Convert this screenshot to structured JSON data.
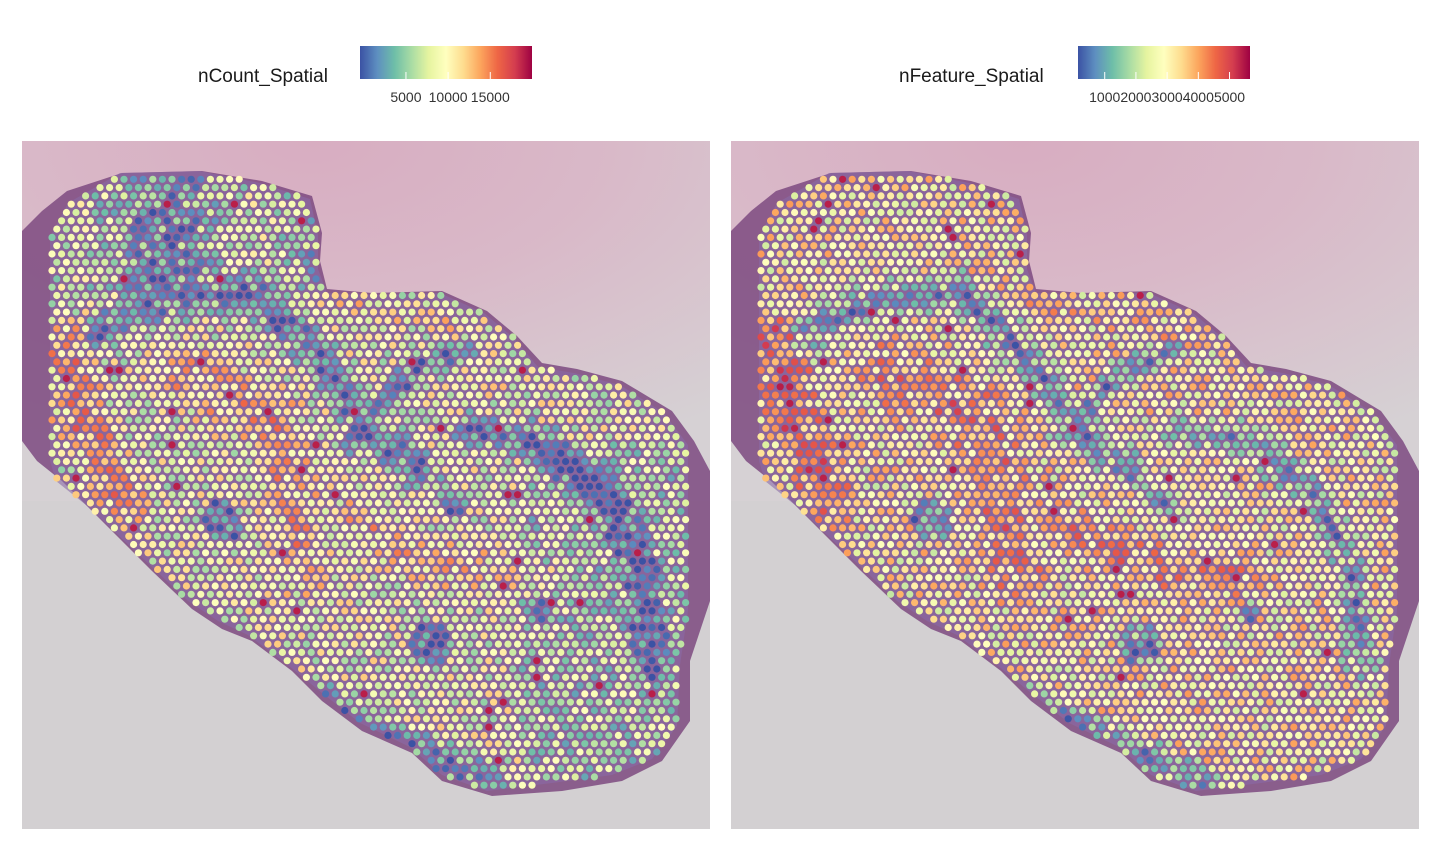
{
  "chart_data": [
    {
      "type": "heatmap",
      "panel": "left",
      "legend_title": "nCount_Spatial",
      "color_scale": "Spectral (reversed)",
      "color_stops": [
        "#3b52a4",
        "#5e8fc0",
        "#6ebea8",
        "#a9dca4",
        "#e6f4a0",
        "#ffffbf",
        "#fedd8f",
        "#fca55d",
        "#ee6645",
        "#d43d4f",
        "#9e0142"
      ],
      "range": [
        500,
        19000
      ],
      "ticks": [
        5000,
        10000,
        15000
      ],
      "tick_labels": [
        "5000",
        "10000",
        "15000"
      ]
    },
    {
      "type": "heatmap",
      "panel": "right",
      "legend_title": "nFeature_Spatial",
      "color_scale": "Spectral (reversed)",
      "color_stops": [
        "#3b52a4",
        "#5e8fc0",
        "#6ebea8",
        "#a9dca4",
        "#e6f4a0",
        "#ffffbf",
        "#fedd8f",
        "#fca55d",
        "#ee6645",
        "#d43d4f",
        "#9e0142"
      ],
      "range": [
        400,
        5400
      ],
      "ticks": [
        1000,
        2000,
        3000,
        4000,
        5000
      ],
      "tick_labels": [
        "1000",
        "2000",
        "3000",
        "4000",
        "5000"
      ]
    }
  ]
}
